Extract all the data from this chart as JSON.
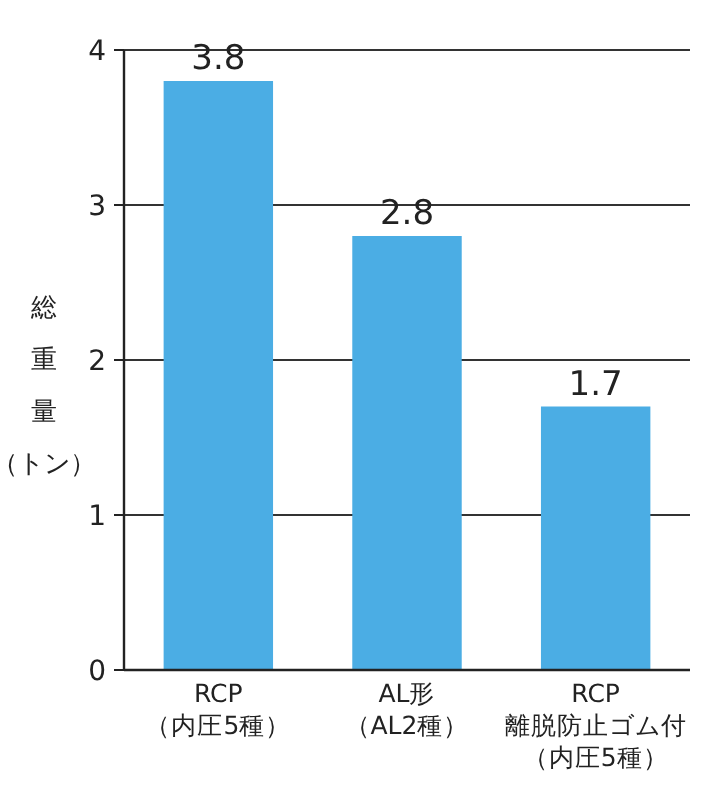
{
  "chart_data": {
    "type": "bar",
    "ylabel": "総重量（トン）",
    "categories": [
      "RCP\n（内圧5種）",
      "AL形（AL2種）",
      "RCP\n離脱防止ゴム付（内圧5種）"
    ],
    "values": [
      3.8,
      2.8,
      1.7
    ],
    "color": "#4badE4",
    "ylim": [
      0,
      4
    ],
    "yticks": [
      0,
      1,
      2,
      3,
      4
    ],
    "grid": "y",
    "data_labels": true
  }
}
